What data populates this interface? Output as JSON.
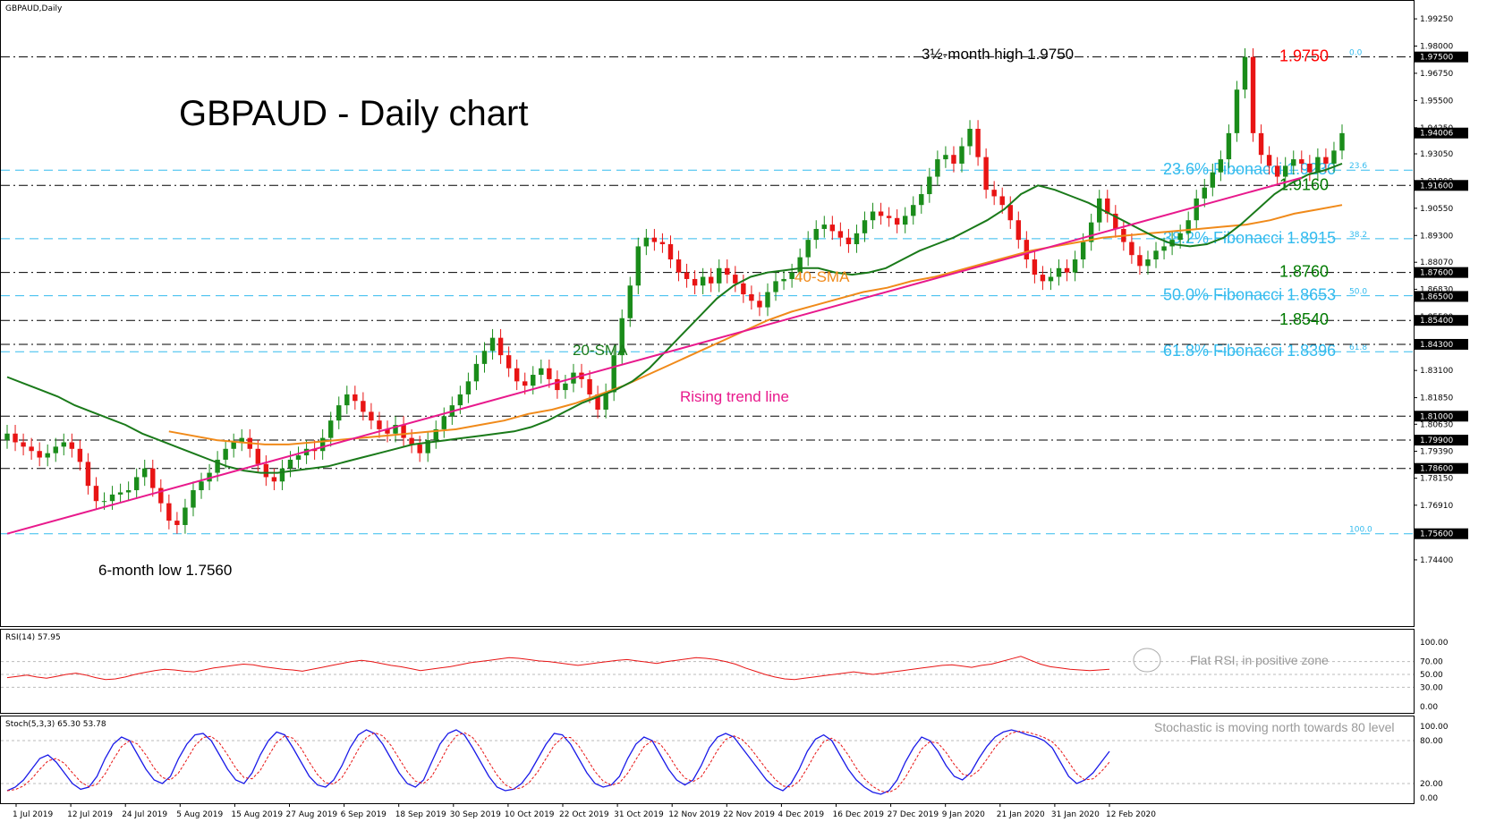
{
  "chart_data": [
    {
      "type": "candlestick",
      "symbol_label": "GBPAUD,Daily",
      "title": "GBPAUD - Daily chart",
      "ylim": [
        1.73,
        1.995
      ],
      "x_dates": [
        "1 Jul 2019",
        "12 Jul 2019",
        "24 Jul 2019",
        "5 Aug 2019",
        "15 Aug 2019",
        "27 Aug 2019",
        "6 Sep 2019",
        "18 Sep 2019",
        "30 Sep 2019",
        "10 Oct 2019",
        "22 Oct 2019",
        "31 Oct 2019",
        "12 Nov 2019",
        "22 Nov 2019",
        "4 Dec 2019",
        "16 Dec 2019",
        "27 Dec 2019",
        "9 Jan 2020",
        "21 Jan 2020",
        "31 Jan 2020",
        "12 Feb 2020"
      ],
      "y_ticks": [
        "1.99250",
        "1.98000",
        "1.96750",
        "1.95500",
        "1.94250",
        "1.93050",
        "1.91800",
        "1.90550",
        "1.89300",
        "1.88070",
        "1.86830",
        "1.85580",
        "1.84330",
        "1.83100",
        "1.81850",
        "1.80630",
        "1.79390",
        "1.78150",
        "1.76910",
        "1.75660",
        "1.74400"
      ],
      "price_labels": [
        "1.97500",
        "1.94006",
        "1.91600",
        "1.87600",
        "1.86500",
        "1.85400",
        "1.84300",
        "1.81000",
        "1.79900",
        "1.78600",
        "1.75600"
      ],
      "horizontal_levels": [
        {
          "label": "1.9750",
          "value": 1.975,
          "color": "#ff0000",
          "style": "dashdot",
          "level_tag": "0.0"
        },
        {
          "label": "23.6% Fibonacci 1.9230",
          "value": 1.923,
          "color": "#33bbee",
          "style": "dash",
          "level_tag": "23.6"
        },
        {
          "label": "1.9160",
          "value": 1.916,
          "color": "#007a00",
          "style": "dashdot"
        },
        {
          "label": "38.2% Fibonacci 1.8915",
          "value": 1.8915,
          "color": "#33bbee",
          "style": "dash",
          "level_tag": "38.2"
        },
        {
          "label": "1.8760",
          "value": 1.876,
          "color": "#007a00",
          "style": "dashdot"
        },
        {
          "label": "50.0% Fibonacci 1.8653",
          "value": 1.8653,
          "color": "#33bbee",
          "style": "dash",
          "level_tag": "50.0"
        },
        {
          "label": "1.8540",
          "value": 1.854,
          "color": "#007a00",
          "style": "dashdot"
        },
        {
          "label": "61.8% Fibonacci 1.8396",
          "value": 1.8396,
          "color": "#33bbee",
          "style": "dash",
          "level_tag": "61.8"
        },
        {
          "value": 1.843,
          "color": "#000000",
          "style": "dashdot"
        },
        {
          "value": 1.81,
          "color": "#000000",
          "style": "dashdot"
        },
        {
          "value": 1.799,
          "color": "#000000",
          "style": "dashdot"
        },
        {
          "value": 1.786,
          "color": "#000000",
          "style": "dashdot"
        },
        {
          "value": 1.756,
          "color": "#33bbee",
          "style": "dash",
          "level_tag": "100.0"
        }
      ],
      "annotations": {
        "high": "3½-month high 1.9750",
        "low": "6-month low 1.7560",
        "sma20": "20-SMA",
        "sma40": "40-SMA",
        "trend": "Rising trend line"
      },
      "trend_line": {
        "from_index": 0,
        "from_value": 1.756,
        "to_index": 160,
        "to_value": 1.9195
      },
      "closes": [
        1.802,
        1.798,
        1.796,
        1.794,
        1.791,
        1.793,
        1.796,
        1.798,
        1.795,
        1.789,
        1.778,
        1.771,
        1.771,
        1.774,
        1.775,
        1.776,
        1.782,
        1.786,
        1.777,
        1.77,
        1.762,
        1.76,
        1.768,
        1.776,
        1.78,
        1.784,
        1.79,
        1.795,
        1.798,
        1.8,
        1.795,
        1.788,
        1.782,
        1.78,
        1.786,
        1.79,
        1.792,
        1.795,
        1.794,
        1.8,
        1.808,
        1.815,
        1.82,
        1.817,
        1.812,
        1.808,
        1.804,
        1.802,
        1.806,
        1.8,
        1.797,
        1.793,
        1.799,
        1.804,
        1.81,
        1.815,
        1.82,
        1.826,
        1.834,
        1.84,
        1.846,
        1.838,
        1.832,
        1.826,
        1.824,
        1.829,
        1.832,
        1.827,
        1.822,
        1.825,
        1.83,
        1.827,
        1.82,
        1.813,
        1.821,
        1.838,
        1.855,
        1.87,
        1.888,
        1.892,
        1.89,
        1.889,
        1.882,
        1.876,
        1.873,
        1.87,
        1.874,
        1.871,
        1.878,
        1.875,
        1.871,
        1.866,
        1.863,
        1.86,
        1.867,
        1.872,
        1.873,
        1.876,
        1.883,
        1.891,
        1.896,
        1.898,
        1.895,
        1.892,
        1.889,
        1.894,
        1.9,
        1.904,
        1.902,
        1.901,
        1.898,
        1.902,
        1.907,
        1.912,
        1.92,
        1.928,
        1.93,
        1.926,
        1.934,
        1.942,
        1.929,
        1.914,
        1.911,
        1.907,
        1.9,
        1.891,
        1.882,
        1.875,
        1.872,
        1.874,
        1.878,
        1.876,
        1.882,
        1.89,
        1.899,
        1.91,
        1.903,
        1.896,
        1.89,
        1.884,
        1.879,
        1.882,
        1.886,
        1.888,
        1.891,
        1.894,
        1.9,
        1.91,
        1.915,
        1.922,
        1.928,
        1.94,
        1.96,
        1.975,
        1.94,
        1.93,
        1.925,
        1.92,
        1.925,
        1.928,
        1.926,
        1.922,
        1.929,
        1.926,
        1.932,
        1.94
      ],
      "sma20": {
        "from_index": 0,
        "values": [
          1.828,
          1.825,
          1.822,
          1.819,
          1.815,
          1.812,
          1.809,
          1.806,
          1.802,
          1.799,
          1.796,
          1.793,
          1.79,
          1.787,
          1.785,
          1.784,
          1.784,
          1.785,
          1.786,
          1.787,
          1.789,
          1.791,
          1.793,
          1.795,
          1.797,
          1.798,
          1.799,
          1.8,
          1.801,
          1.802,
          1.803,
          1.805,
          1.808,
          1.812,
          1.816,
          1.819,
          1.822,
          1.826,
          1.832,
          1.84,
          1.848,
          1.856,
          1.864,
          1.87,
          1.874,
          1.876,
          1.877,
          1.878,
          1.878,
          1.876,
          1.875,
          1.876,
          1.878,
          1.882,
          1.886,
          1.889,
          1.892,
          1.896,
          1.9,
          1.905,
          1.912,
          1.916,
          1.914,
          1.911,
          1.908,
          1.904,
          1.9,
          1.896,
          1.892,
          1.889,
          1.888,
          1.889,
          1.892,
          1.898,
          1.905,
          1.912,
          1.917,
          1.921,
          1.923,
          1.926
        ]
      },
      "sma40": {
        "from_index": 20,
        "values": [
          1.803,
          1.801,
          1.799,
          1.798,
          1.797,
          1.797,
          1.798,
          1.799,
          1.8,
          1.801,
          1.802,
          1.803,
          1.804,
          1.806,
          1.808,
          1.811,
          1.813,
          1.816,
          1.82,
          1.824,
          1.829,
          1.834,
          1.839,
          1.844,
          1.849,
          1.854,
          1.858,
          1.861,
          1.864,
          1.867,
          1.869,
          1.872,
          1.874,
          1.877,
          1.88,
          1.883,
          1.886,
          1.888,
          1.89,
          1.892,
          1.893,
          1.894,
          1.895,
          1.896,
          1.897,
          1.898,
          1.9,
          1.903,
          1.905,
          1.907
        ]
      },
      "rsi": {
        "label": "RSI(14) 57.95",
        "ylim": [
          0,
          100
        ],
        "ticks": [
          "100.00",
          "70.00",
          "50.00",
          "30.00",
          "0.00"
        ],
        "annotation": "Flat RSI, in positive zone",
        "values": [
          45,
          47,
          49,
          46,
          44,
          47,
          50,
          52,
          49,
          45,
          42,
          43,
          46,
          50,
          53,
          56,
          58,
          57,
          55,
          54,
          57,
          60,
          62,
          64,
          66,
          65,
          62,
          60,
          58,
          57,
          55,
          58,
          61,
          64,
          67,
          70,
          72,
          70,
          67,
          64,
          62,
          59,
          56,
          58,
          60,
          62,
          65,
          68,
          70,
          72,
          74,
          76,
          75,
          73,
          71,
          70,
          68,
          66,
          64,
          66,
          68,
          70,
          72,
          73,
          71,
          69,
          67,
          70,
          72,
          74,
          76,
          75,
          73,
          70,
          66,
          60,
          55,
          50,
          46,
          43,
          42,
          44,
          46,
          48,
          50,
          52,
          54,
          52,
          50,
          52,
          54,
          56,
          58,
          60,
          62,
          64,
          65,
          63,
          61,
          64,
          66,
          70,
          74,
          78,
          72,
          66,
          62,
          60,
          58,
          57,
          56,
          57,
          58
        ]
      },
      "stoch": {
        "label": "Stoch(5,3,3) 65.30 53.78",
        "ylim": [
          0,
          100
        ],
        "ticks": [
          "100.00",
          "80.00",
          "20.00",
          "0.00"
        ],
        "annotation": "Stochastic is moving north towards 80 level",
        "values": [
          10,
          15,
          25,
          40,
          55,
          60,
          50,
          35,
          20,
          12,
          15,
          30,
          55,
          75,
          85,
          80,
          60,
          40,
          25,
          20,
          30,
          55,
          75,
          88,
          90,
          80,
          60,
          40,
          25,
          20,
          35,
          60,
          80,
          92,
          88,
          70,
          50,
          30,
          18,
          15,
          25,
          45,
          70,
          88,
          95,
          90,
          75,
          55,
          35,
          20,
          15,
          25,
          50,
          75,
          90,
          95,
          88,
          70,
          50,
          30,
          15,
          10,
          12,
          20,
          35,
          55,
          75,
          90,
          88,
          75,
          55,
          35,
          20,
          15,
          18,
          30,
          55,
          75,
          85,
          80,
          60,
          40,
          25,
          18,
          25,
          45,
          70,
          85,
          90,
          85,
          70,
          55,
          40,
          25,
          15,
          10,
          20,
          40,
          65,
          82,
          88,
          80,
          60,
          40,
          25,
          15,
          8,
          5,
          10,
          25,
          50,
          70,
          85,
          80,
          65,
          45,
          30,
          25,
          35,
          55,
          72,
          85,
          92,
          95,
          92,
          88,
          85,
          80,
          70,
          50,
          30,
          20,
          25,
          35,
          50,
          65
        ]
      }
    }
  ]
}
